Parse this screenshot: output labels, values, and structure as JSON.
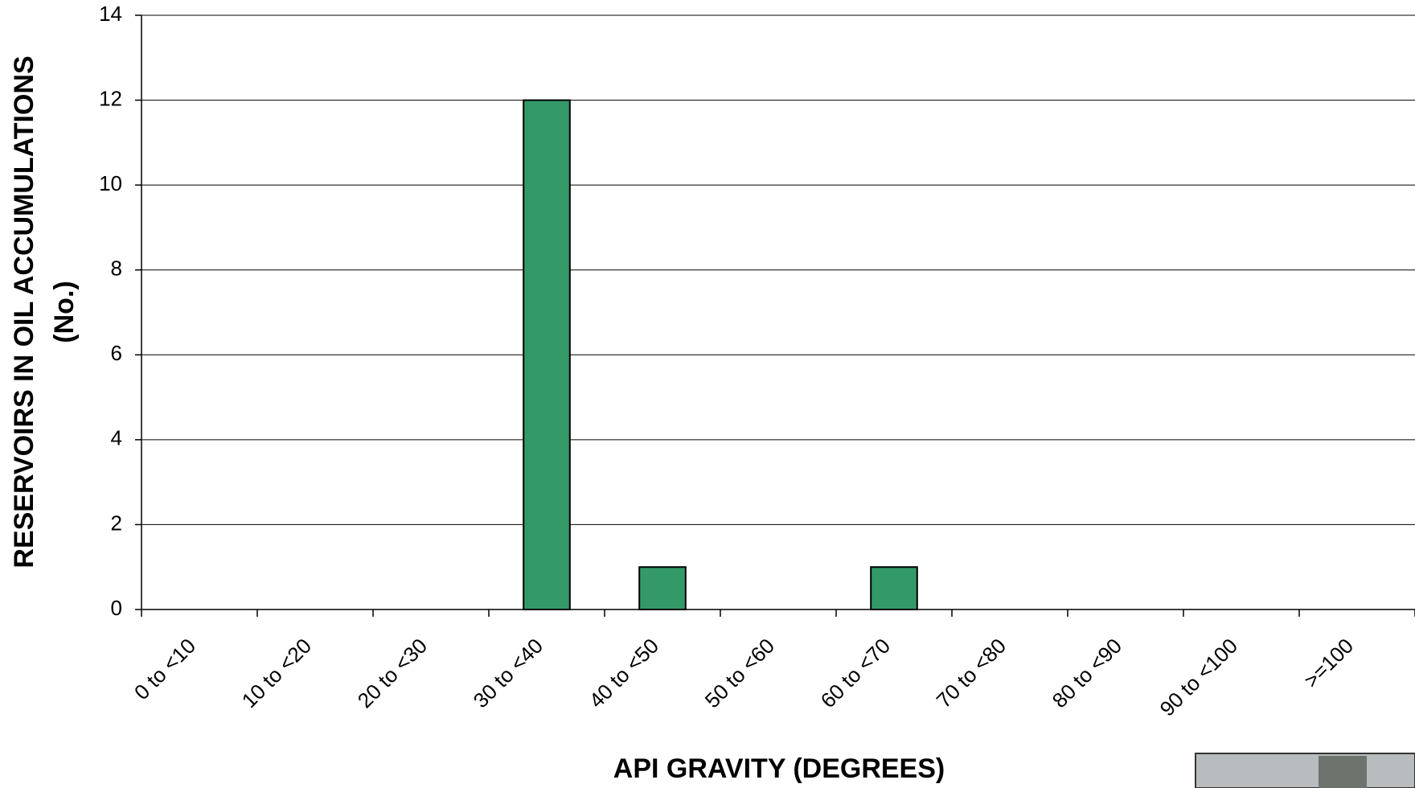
{
  "chart_data": {
    "type": "bar",
    "x_label": "API GRAVITY (DEGREES)",
    "y_label": [
      "RESERVOIRS IN OIL ACCUMULATIONS",
      "(No.)"
    ],
    "categories": [
      "0 to <10",
      "10 to <20",
      "20 to <30",
      "30 to <40",
      "40 to <50",
      "50 to <60",
      "60 to <70",
      "70 to <80",
      "80 to <90",
      "90 to <100",
      ">=100"
    ],
    "values": [
      0,
      0,
      0,
      12,
      1,
      0,
      1,
      0,
      0,
      0,
      0
    ],
    "color": "#339966",
    "ylim": [
      0,
      14
    ],
    "yticks": [
      0,
      2,
      4,
      6,
      8,
      10,
      12,
      14
    ],
    "grid": true
  }
}
